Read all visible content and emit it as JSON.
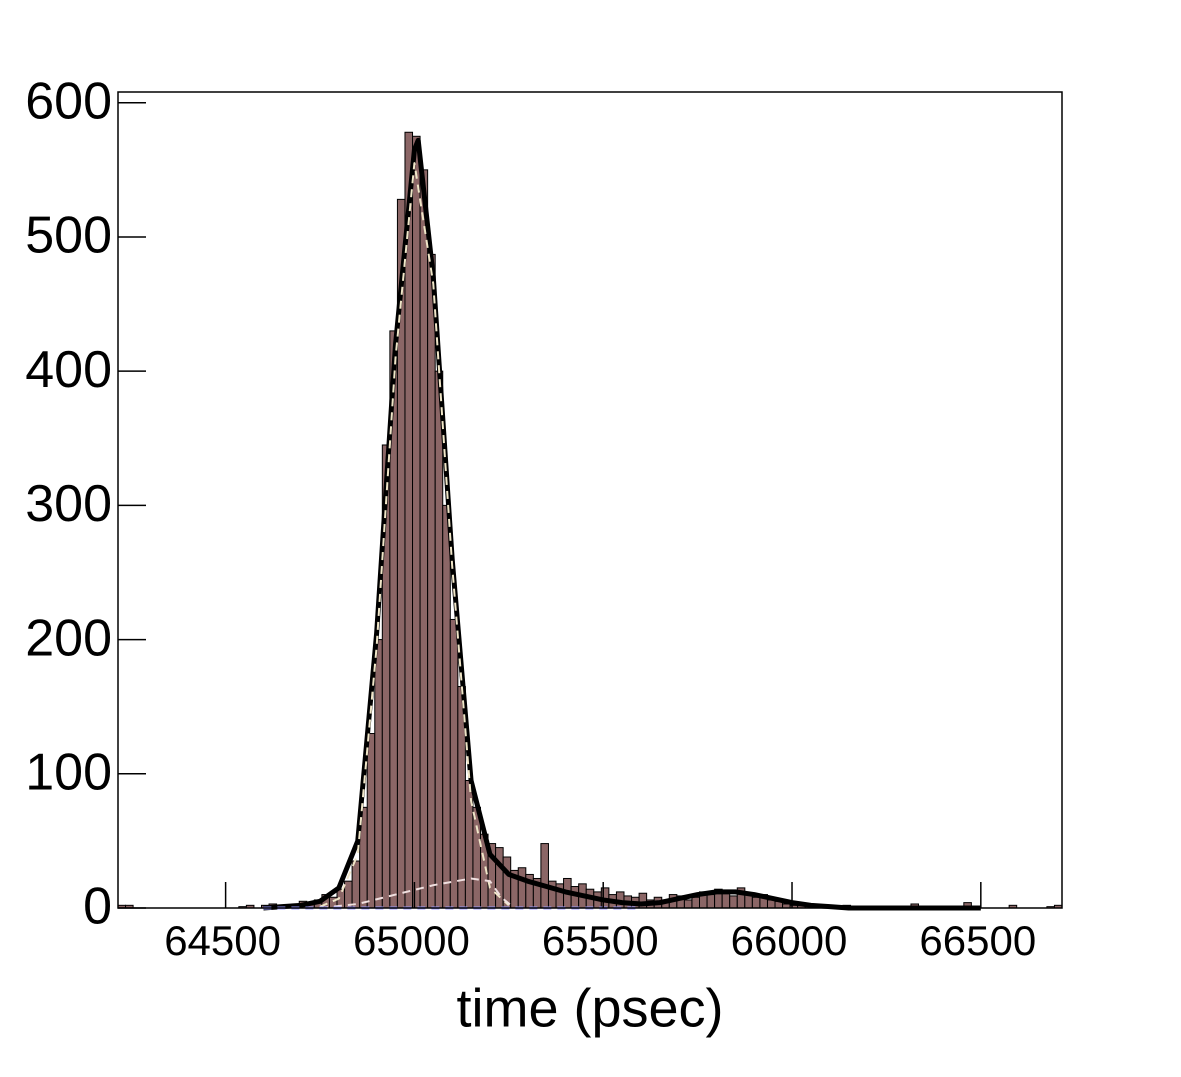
{
  "chart_data": {
    "type": "histogram",
    "xlabel": "time (psec)",
    "bins": [
      64215,
      64235,
      64255,
      64275,
      64295,
      64315,
      64335,
      64355,
      64375,
      64395,
      64415,
      64435,
      64455,
      64475,
      64495,
      64515,
      64535,
      64555,
      64575,
      64595,
      64615,
      64635,
      64655,
      64675,
      64695,
      64715,
      64735,
      64755,
      64775,
      64795,
      64815,
      64835,
      64855,
      64875,
      64895,
      64915,
      64935,
      64955,
      64975,
      64995,
      65015,
      65035,
      65055,
      65075,
      65095,
      65115,
      65135,
      65155,
      65175,
      65195,
      65215,
      65235,
      65255,
      65275,
      65295,
      65315,
      65335,
      65355,
      65375,
      65395,
      65415,
      65435,
      65455,
      65475,
      65495,
      65515,
      65535,
      65555,
      65575,
      65595,
      65615,
      65635,
      65655,
      65675,
      65695,
      65715,
      65735,
      65755,
      65775,
      65795,
      65815,
      65835,
      65855,
      65875,
      65895,
      65915,
      65935,
      65955,
      65975,
      65995,
      66015,
      66035,
      66055,
      66075,
      66095,
      66115,
      66135,
      66155,
      66175,
      66195,
      66215,
      66235,
      66255,
      66275,
      66295,
      66315,
      66335,
      66355,
      66375,
      66395,
      66415,
      66435,
      66455,
      66475,
      66495,
      66515,
      66535,
      66555,
      66575,
      66595,
      66615,
      66635,
      66655,
      66675,
      66695,
      66715
    ],
    "counts": [
      2,
      2,
      0,
      0,
      0,
      0,
      0,
      0,
      0,
      0,
      0,
      0,
      0,
      0,
      0,
      0,
      1,
      2,
      0,
      2,
      3,
      2,
      1,
      3,
      5,
      4,
      6,
      10,
      8,
      14,
      20,
      35,
      75,
      130,
      200,
      345,
      430,
      528,
      578,
      575,
      550,
      487,
      400,
      300,
      215,
      165,
      95,
      75,
      55,
      48,
      45,
      38,
      28,
      30,
      25,
      22,
      48,
      20,
      18,
      22,
      16,
      18,
      14,
      12,
      15,
      10,
      12,
      9,
      8,
      11,
      6,
      8,
      6,
      10,
      9,
      6,
      8,
      12,
      10,
      14,
      12,
      9,
      15,
      11,
      8,
      10,
      6,
      5,
      3,
      2,
      3,
      1,
      2,
      1,
      0,
      0,
      2,
      0,
      0,
      0,
      1,
      0,
      0,
      0,
      0,
      3,
      0,
      1,
      0,
      0,
      0,
      0,
      4,
      0,
      0,
      0,
      0,
      0,
      2,
      0,
      0,
      0,
      0,
      1,
      2
    ],
    "color": "#8b6666",
    "edgecolor": "#000000",
    "lines": [
      {
        "color": "#000000",
        "dashed": false,
        "width": 5,
        "x": [
          64600,
          64650,
          64700,
          64750,
          64800,
          64850,
          64900,
          64950,
          65000,
          65010,
          65050,
          65100,
          65150,
          65200,
          65250,
          65300,
          65350,
          65400,
          65450,
          65500,
          65550,
          65600,
          65650,
          65700,
          65750,
          65800,
          65850,
          65900,
          65950,
          66000,
          66050,
          66100,
          66150,
          66200,
          66300,
          66400,
          66500
        ],
        "values": [
          0,
          1,
          2,
          5,
          15,
          50,
          205,
          420,
          565,
          572,
          470,
          260,
          95,
          40,
          25,
          20,
          16,
          12,
          9,
          6,
          4,
          3,
          4,
          7,
          10,
          12,
          12,
          10,
          7,
          4,
          2,
          1,
          0,
          0,
          0,
          0,
          0
        ]
      },
      {
        "color": "#f0e6c8",
        "dashed": true,
        "width": 2,
        "x": [
          64750,
          64800,
          64850,
          64900,
          64950,
          65000,
          65050,
          65100,
          65150,
          65200,
          65250
        ],
        "values": [
          1,
          7,
          40,
          195,
          410,
          555,
          465,
          255,
          80,
          15,
          2
        ]
      },
      {
        "color": "#f0e0e0",
        "dashed": true,
        "width": 2,
        "x": [
          64750,
          64850,
          64950,
          65050,
          65150,
          65200,
          65230,
          65260
        ],
        "values": [
          0,
          3,
          10,
          17,
          22,
          20,
          8,
          1
        ]
      },
      {
        "color": "#9999ff",
        "dashed": true,
        "width": 3,
        "x": [
          64600,
          65600
        ],
        "values": [
          0,
          0
        ]
      }
    ],
    "xlim": [
      64215,
      66715
    ],
    "ylim": [
      0,
      608
    ],
    "xticks": [
      64500,
      65000,
      65500,
      66000,
      66500
    ],
    "yticks": [
      0,
      100,
      200,
      300,
      400,
      500,
      600
    ]
  }
}
